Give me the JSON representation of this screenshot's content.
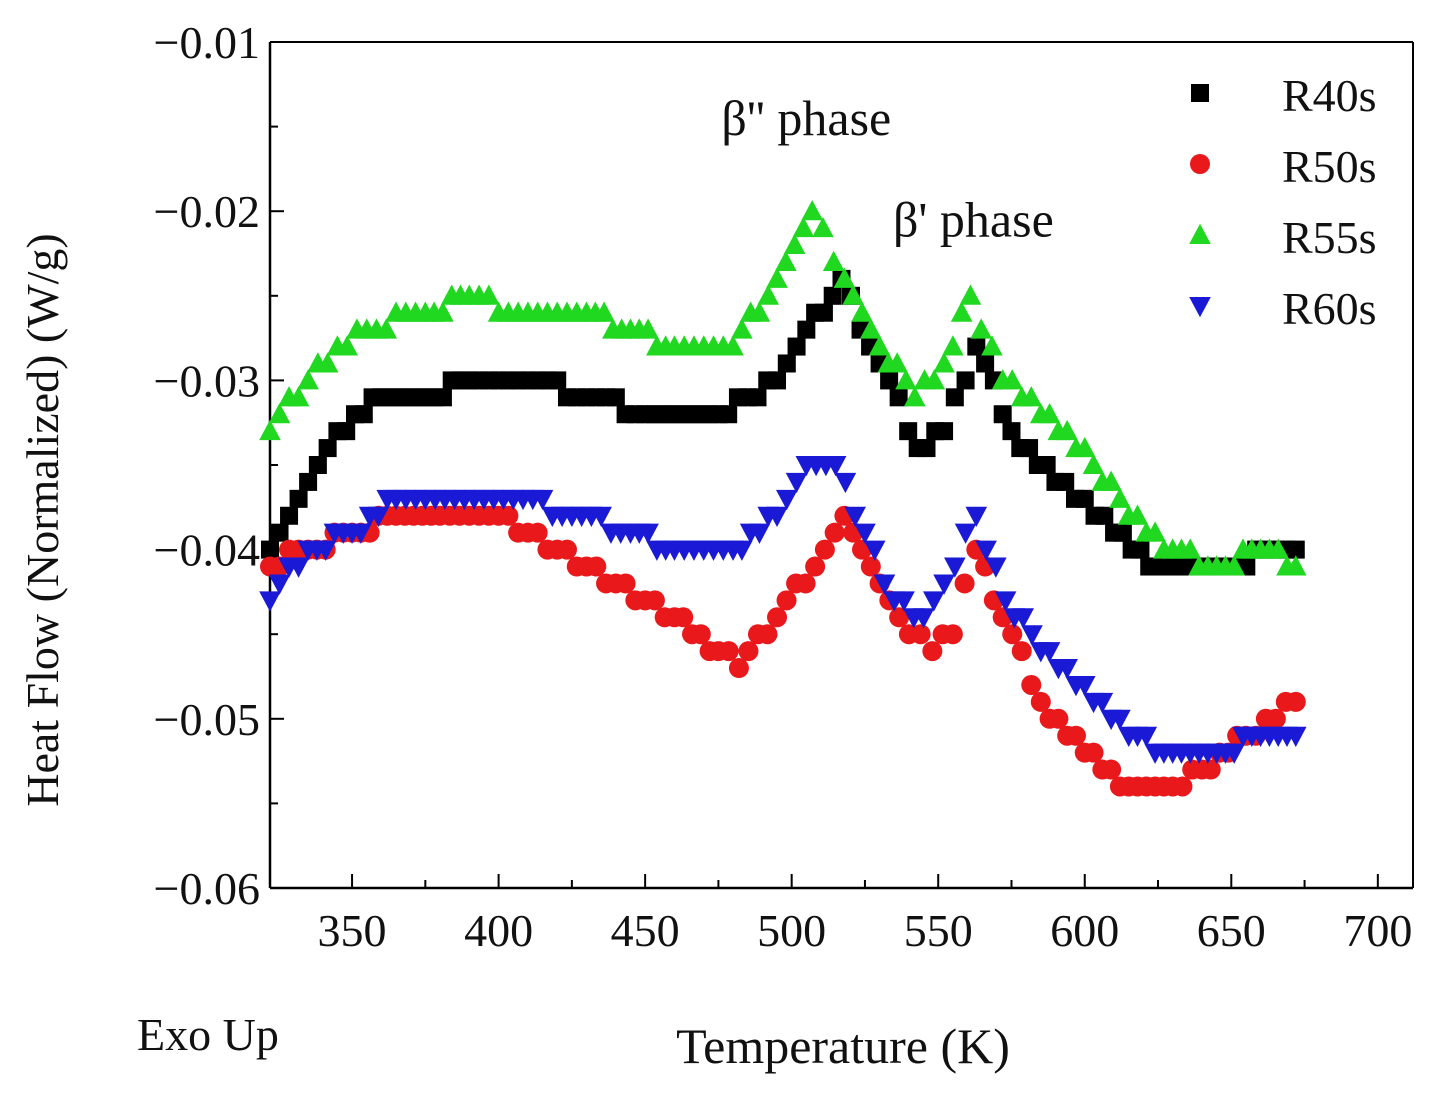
{
  "chart_data": {
    "type": "scatter",
    "title": "",
    "xlabel": "Temperature (K)",
    "ylabel": "Heat Flow (Normalized) (W/g)",
    "footnote": "Exo Up",
    "xlim": [
      322,
      712
    ],
    "ylim": [
      -0.06,
      -0.01
    ],
    "xticks": [
      350,
      400,
      450,
      500,
      550,
      600,
      650,
      700
    ],
    "yticks": [
      -0.01,
      -0.02,
      -0.03,
      -0.04,
      -0.05,
      -0.06
    ],
    "ytick_labels": [
      "−0.01",
      "−0.02",
      "−0.03",
      "−0.04",
      "−0.05",
      "−0.06"
    ],
    "grid": false,
    "legend_position": "top-right",
    "annotations": [
      {
        "text": "β'' phase",
        "x": 505,
        "y": -0.0155
      },
      {
        "text": "β' phase",
        "x": 562,
        "y": -0.0215
      }
    ],
    "series": [
      {
        "name": "R40s",
        "marker": "square",
        "color": "#000000",
        "points": [
          [
            322,
            -0.04
          ],
          [
            335,
            -0.036
          ],
          [
            345,
            -0.033
          ],
          [
            360,
            -0.031
          ],
          [
            375,
            -0.031
          ],
          [
            390,
            -0.03
          ],
          [
            410,
            -0.03
          ],
          [
            430,
            -0.031
          ],
          [
            450,
            -0.032
          ],
          [
            475,
            -0.032
          ],
          [
            495,
            -0.03
          ],
          [
            505,
            -0.027
          ],
          [
            517,
            -0.024
          ],
          [
            530,
            -0.029
          ],
          [
            543,
            -0.034
          ],
          [
            552,
            -0.033
          ],
          [
            563,
            -0.028
          ],
          [
            575,
            -0.033
          ],
          [
            590,
            -0.036
          ],
          [
            610,
            -0.039
          ],
          [
            625,
            -0.041
          ],
          [
            645,
            -0.041
          ],
          [
            672,
            -0.04
          ]
        ]
      },
      {
        "name": "R50s",
        "marker": "circle",
        "color": "#e8181b",
        "points": [
          [
            322,
            -0.041
          ],
          [
            335,
            -0.04
          ],
          [
            350,
            -0.039
          ],
          [
            365,
            -0.038
          ],
          [
            380,
            -0.038
          ],
          [
            400,
            -0.038
          ],
          [
            420,
            -0.04
          ],
          [
            440,
            -0.042
          ],
          [
            460,
            -0.044
          ],
          [
            475,
            -0.046
          ],
          [
            482,
            -0.047
          ],
          [
            495,
            -0.044
          ],
          [
            508,
            -0.041
          ],
          [
            518,
            -0.038
          ],
          [
            530,
            -0.042
          ],
          [
            540,
            -0.045
          ],
          [
            548,
            -0.046
          ],
          [
            555,
            -0.045
          ],
          [
            563,
            -0.04
          ],
          [
            572,
            -0.044
          ],
          [
            585,
            -0.049
          ],
          [
            600,
            -0.052
          ],
          [
            615,
            -0.054
          ],
          [
            630,
            -0.054
          ],
          [
            640,
            -0.053
          ],
          [
            655,
            -0.051
          ],
          [
            672,
            -0.049
          ]
        ]
      },
      {
        "name": "R55s",
        "marker": "triangle-up",
        "color": "#1fd81f",
        "points": [
          [
            322,
            -0.033
          ],
          [
            335,
            -0.03
          ],
          [
            355,
            -0.027
          ],
          [
            375,
            -0.026
          ],
          [
            390,
            -0.025
          ],
          [
            410,
            -0.026
          ],
          [
            430,
            -0.026
          ],
          [
            445,
            -0.027
          ],
          [
            460,
            -0.028
          ],
          [
            480,
            -0.028
          ],
          [
            495,
            -0.024
          ],
          [
            507,
            -0.02
          ],
          [
            518,
            -0.024
          ],
          [
            530,
            -0.028
          ],
          [
            542,
            -0.031
          ],
          [
            552,
            -0.029
          ],
          [
            561,
            -0.025
          ],
          [
            572,
            -0.03
          ],
          [
            585,
            -0.032
          ],
          [
            600,
            -0.034
          ],
          [
            615,
            -0.038
          ],
          [
            630,
            -0.04
          ],
          [
            645,
            -0.041
          ],
          [
            660,
            -0.04
          ],
          [
            672,
            -0.041
          ]
        ]
      },
      {
        "name": "R60s",
        "marker": "triangle-down",
        "color": "#1a1ad6",
        "points": [
          [
            322,
            -0.043
          ],
          [
            335,
            -0.04
          ],
          [
            350,
            -0.039
          ],
          [
            365,
            -0.037
          ],
          [
            385,
            -0.037
          ],
          [
            405,
            -0.037
          ],
          [
            425,
            -0.038
          ],
          [
            445,
            -0.039
          ],
          [
            460,
            -0.04
          ],
          [
            480,
            -0.04
          ],
          [
            495,
            -0.038
          ],
          [
            505,
            -0.035
          ],
          [
            515,
            -0.035
          ],
          [
            525,
            -0.039
          ],
          [
            535,
            -0.043
          ],
          [
            545,
            -0.044
          ],
          [
            552,
            -0.042
          ],
          [
            563,
            -0.038
          ],
          [
            573,
            -0.043
          ],
          [
            585,
            -0.046
          ],
          [
            600,
            -0.048
          ],
          [
            615,
            -0.051
          ],
          [
            630,
            -0.052
          ],
          [
            645,
            -0.052
          ],
          [
            660,
            -0.051
          ],
          [
            672,
            -0.051
          ]
        ]
      }
    ]
  }
}
